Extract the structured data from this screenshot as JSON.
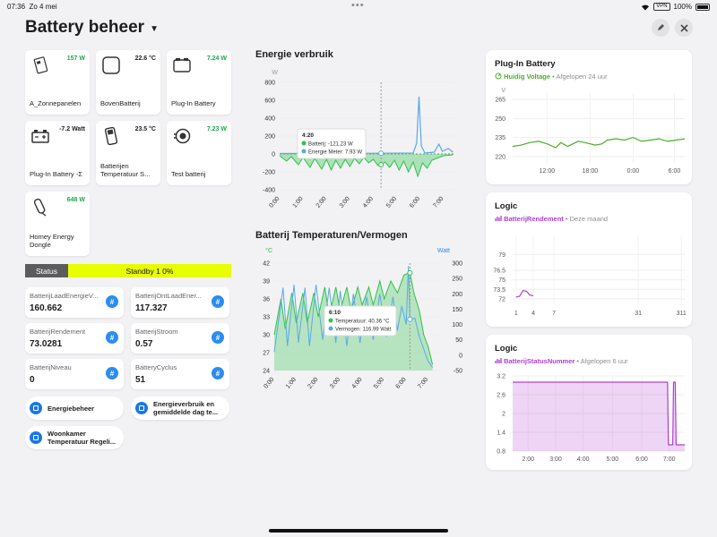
{
  "status_bar": {
    "time": "07:36",
    "date": "Zo 4 mei",
    "dots": "•••",
    "vpn": "VPN",
    "battery": "100%"
  },
  "header": {
    "title": "Battery beheer",
    "edit_icon": "pencil-icon",
    "close_icon": "close-icon"
  },
  "tiles": [
    {
      "name": "A_Zonnepanelen",
      "value": "157 W",
      "green": true,
      "icon": "solar-inverter-icon"
    },
    {
      "name": "BovenBatterij",
      "value": "22.6 °C",
      "green": false,
      "icon": "square-device-icon"
    },
    {
      "name": "Plug-In Battery",
      "value": "7.24 W",
      "green": true,
      "icon": "battery-box-icon"
    },
    {
      "name": "Plug-In Battery -Σ",
      "value": "-7.2 Watt",
      "green": false,
      "icon": "car-battery-icon"
    },
    {
      "name": "Batterijen Temperatuur S...",
      "value": "23.5 °C",
      "green": false,
      "icon": "sensor-icon"
    },
    {
      "name": "Test batterij",
      "value": "7.23 W",
      "green": true,
      "icon": "plug-icon"
    },
    {
      "name": "Homey Energy Dongle",
      "value": "648 W",
      "green": true,
      "icon": "dongle-icon"
    }
  ],
  "status": {
    "label": "Status",
    "value": "Standby 1 0%"
  },
  "variables": [
    {
      "name": "BatterijLaadEnergieV...",
      "value": "160.662"
    },
    {
      "name": "BatterijOntLaadEner...",
      "value": "117.327"
    },
    {
      "name": "BatterijRendement",
      "value": "73.0281"
    },
    {
      "name": "BatterijStroom",
      "value": "0.57"
    },
    {
      "name": "BatterijNiveau",
      "value": "0"
    },
    {
      "name": "BatteryCyclus",
      "value": "51"
    }
  ],
  "hash_symbol": "#",
  "flows": [
    {
      "label": "Energiebeheer"
    },
    {
      "label": "Energieverbruik en gemiddelde dag te..."
    },
    {
      "label": "Woonkamer Temperatuur Regeli..."
    }
  ],
  "cards": [
    {
      "title": "Plug-In Battery",
      "metric": "Huidig Voltage",
      "period": "Afgelopen 24 uur",
      "accent": "#4caf28"
    },
    {
      "title": "Logic",
      "metric": "BatterijRendement",
      "period": "Deze maand",
      "accent": "#b040d0"
    },
    {
      "title": "Logic",
      "metric": "BatterijStatusNummer",
      "period": "Afgelopen 6 uur",
      "accent": "#b040d0"
    }
  ],
  "chart_data": [
    {
      "type": "area",
      "title": "Energie verbruik",
      "ylabel": "W",
      "ylim": [
        -400,
        800
      ],
      "yticks": [
        800,
        600,
        400,
        200,
        0,
        -200,
        -400
      ],
      "x_ticks": [
        "0:00",
        "1:00",
        "2:00",
        "3:00",
        "4:00",
        "5:00",
        "6:00",
        "7:00"
      ],
      "x_range": [
        0,
        7.5
      ],
      "tooltip": {
        "time": "4:20",
        "lines": [
          "Batterij: -121.23 W",
          "Energie Meter: 7.93 W"
        ]
      },
      "series": [
        {
          "name": "Batterij",
          "color": "#2fc24a",
          "values": [
            [
              0,
              -20
            ],
            [
              0.3,
              -80
            ],
            [
              0.5,
              -30
            ],
            [
              0.8,
              -120
            ],
            [
              1,
              -40
            ],
            [
              1.3,
              -150
            ],
            [
              1.5,
              -50
            ],
            [
              1.8,
              -170
            ],
            [
              2,
              -60
            ],
            [
              2.2,
              -180
            ],
            [
              2.4,
              -70
            ],
            [
              2.6,
              -160
            ],
            [
              2.8,
              -60
            ],
            [
              3,
              -140
            ],
            [
              3.2,
              -50
            ],
            [
              3.4,
              -110
            ],
            [
              3.6,
              -40
            ],
            [
              3.8,
              -100
            ],
            [
              4,
              -60
            ],
            [
              4.2,
              -130
            ],
            [
              4.33,
              -121
            ],
            [
              4.5,
              -90
            ],
            [
              4.7,
              -150
            ],
            [
              4.9,
              -70
            ],
            [
              5.1,
              -180
            ],
            [
              5.3,
              -80
            ],
            [
              5.5,
              -200
            ],
            [
              5.7,
              -90
            ],
            [
              5.9,
              -250
            ],
            [
              6.1,
              -100
            ],
            [
              6.3,
              -160
            ],
            [
              6.5,
              -70
            ],
            [
              6.8,
              -40
            ],
            [
              7,
              -20
            ],
            [
              7.4,
              -10
            ]
          ]
        },
        {
          "name": "Energie Meter",
          "color": "#5aa8e8",
          "values": [
            [
              0,
              5
            ],
            [
              2,
              6
            ],
            [
              4.33,
              8
            ],
            [
              5.7,
              10
            ],
            [
              5.85,
              120
            ],
            [
              5.95,
              640
            ],
            [
              6.05,
              90
            ],
            [
              6.2,
              10
            ],
            [
              6.6,
              20
            ],
            [
              6.8,
              110
            ],
            [
              6.95,
              30
            ],
            [
              7.2,
              60
            ],
            [
              7.4,
              20
            ]
          ]
        }
      ]
    },
    {
      "type": "area",
      "title": "Batterij Temperaturen/Vermogen",
      "y_left_label": "°C",
      "y_right_label": "Watt",
      "ylim_left": [
        24,
        42
      ],
      "ylim_right": [
        -50,
        300
      ],
      "yticks_left": [
        42,
        39,
        36,
        33,
        30,
        27,
        24
      ],
      "yticks_right": [
        300,
        250,
        200,
        150,
        100,
        50,
        0,
        -50
      ],
      "x_ticks": [
        "0:00",
        "1:00",
        "2:00",
        "3:00",
        "4:00",
        "5:00",
        "6:00",
        "7:00"
      ],
      "x_range": [
        0,
        7.5
      ],
      "tooltip": {
        "time": "6:10",
        "lines": [
          "Temperatuur: 40.36 °C",
          "Vermogen: 116.99 Watt"
        ]
      },
      "series": [
        {
          "name": "Temperatuur",
          "color": "#2fc24a",
          "axis": "left",
          "values": [
            [
              0,
              30
            ],
            [
              0.3,
              36
            ],
            [
              0.5,
              31
            ],
            [
              0.8,
              37
            ],
            [
              1,
              32
            ],
            [
              1.3,
              37
            ],
            [
              1.5,
              32
            ],
            [
              1.8,
              37
            ],
            [
              2,
              33
            ],
            [
              2.3,
              38
            ],
            [
              2.5,
              33
            ],
            [
              2.8,
              38
            ],
            [
              3,
              34
            ],
            [
              3.3,
              38
            ],
            [
              3.5,
              34
            ],
            [
              3.8,
              38
            ],
            [
              4,
              35
            ],
            [
              4.3,
              38
            ],
            [
              4.5,
              35
            ],
            [
              4.8,
              39
            ],
            [
              5,
              36
            ],
            [
              5.3,
              39
            ],
            [
              5.6,
              37
            ],
            [
              5.9,
              40
            ],
            [
              6.17,
              40.4
            ],
            [
              6.35,
              37
            ],
            [
              6.6,
              34
            ],
            [
              6.8,
              30
            ],
            [
              7,
              28
            ],
            [
              7.2,
              25
            ]
          ]
        },
        {
          "name": "Vermogen",
          "color": "#5aa8e8",
          "axis": "right",
          "values": [
            [
              0,
              10
            ],
            [
              0.4,
              220
            ],
            [
              0.6,
              30
            ],
            [
              0.9,
              230
            ],
            [
              1.1,
              40
            ],
            [
              1.4,
              220
            ],
            [
              1.6,
              30
            ],
            [
              1.9,
              230
            ],
            [
              2.2,
              50
            ],
            [
              2.5,
              220
            ],
            [
              2.8,
              40
            ],
            [
              3,
              210
            ],
            [
              3.3,
              30
            ],
            [
              3.6,
              200
            ],
            [
              3.9,
              40
            ],
            [
              4.2,
              190
            ],
            [
              4.5,
              50
            ],
            [
              4.8,
              200
            ],
            [
              5.1,
              60
            ],
            [
              5.4,
              190
            ],
            [
              5.6,
              80
            ],
            [
              5.8,
              160
            ],
            [
              6,
              100
            ],
            [
              6.1,
              290
            ],
            [
              6.17,
              117
            ],
            [
              6.4,
              120
            ],
            [
              6.6,
              60
            ],
            [
              6.8,
              20
            ],
            [
              7,
              -20
            ],
            [
              7.2,
              -40
            ]
          ]
        }
      ]
    },
    {
      "type": "line",
      "title": "Plug-In Battery",
      "ylabel": "V",
      "ylim": [
        215,
        270
      ],
      "yticks": [
        265,
        250,
        235,
        220
      ],
      "x_ticks": [
        "12:00",
        "18:00",
        "0:00",
        "6:00"
      ],
      "x_tick_pos": [
        0.2,
        0.45,
        0.7,
        0.94
      ],
      "series": [
        {
          "name": "Huidig Voltage",
          "color": "#4caf28",
          "values": [
            [
              0,
              228
            ],
            [
              0.05,
              229
            ],
            [
              0.1,
              231
            ],
            [
              0.15,
              232
            ],
            [
              0.2,
              230
            ],
            [
              0.25,
              227
            ],
            [
              0.28,
              231
            ],
            [
              0.32,
              228
            ],
            [
              0.38,
              232
            ],
            [
              0.42,
              231
            ],
            [
              0.48,
              229
            ],
            [
              0.52,
              230
            ],
            [
              0.55,
              233
            ],
            [
              0.6,
              234
            ],
            [
              0.65,
              233
            ],
            [
              0.7,
              235
            ],
            [
              0.75,
              232
            ],
            [
              0.8,
              233
            ],
            [
              0.85,
              234
            ],
            [
              0.9,
              232
            ],
            [
              0.95,
              233
            ],
            [
              1,
              234
            ]
          ]
        }
      ]
    },
    {
      "type": "line",
      "title": "Logic",
      "ylim": [
        71,
        82
      ],
      "yticks": [
        79,
        76.5,
        75,
        73.5,
        72
      ],
      "x_ticks": [
        "1",
        "4",
        "7",
        "31",
        "311"
      ],
      "x_tick_pos": [
        0.02,
        0.12,
        0.24,
        0.73,
        0.98
      ],
      "series": [
        {
          "name": "BatterijRendement",
          "color": "#b040d0",
          "values": [
            [
              0.02,
              72.3
            ],
            [
              0.04,
              72.4
            ],
            [
              0.06,
              73.3
            ],
            [
              0.08,
              73.2
            ],
            [
              0.1,
              72.6
            ],
            [
              0.12,
              72.5
            ]
          ]
        }
      ]
    },
    {
      "type": "area",
      "title": "Logic",
      "ylim": [
        0.8,
        3.2
      ],
      "yticks": [
        3.2,
        2.6,
        2,
        1.4,
        0.8
      ],
      "x_ticks": [
        "2:00",
        "3:00",
        "4:00",
        "5:00",
        "6:00",
        "7:00"
      ],
      "x_tick_pos": [
        0.09,
        0.25,
        0.41,
        0.58,
        0.75,
        0.91
      ],
      "series": [
        {
          "name": "BatterijStatusNummer",
          "color": "#b040d0",
          "values": [
            [
              0,
              3
            ],
            [
              0.9,
              3
            ],
            [
              0.905,
              1.0
            ],
            [
              0.93,
              1.0
            ],
            [
              0.935,
              3
            ],
            [
              0.945,
              3
            ],
            [
              0.95,
              1
            ],
            [
              1,
              1
            ]
          ]
        }
      ]
    }
  ]
}
